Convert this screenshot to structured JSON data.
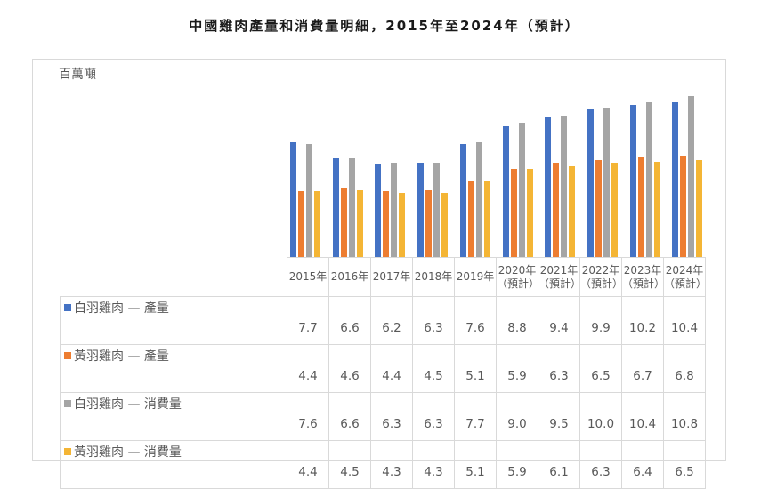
{
  "title": "中國雞肉產量和消費量明細，2015年至2024年（預計）",
  "unit_label": "百萬噸",
  "chart_data": {
    "type": "bar",
    "title": "中國雞肉產量和消費量明細，2015年至2024年（預計）",
    "ylabel": "百萬噸",
    "xlabel": "",
    "categories": [
      "2015年",
      "2016年",
      "2017年",
      "2018年",
      "2019年",
      "2020年（預計）",
      "2021年（預計）",
      "2022年（預計）",
      "2023年（預計）",
      "2024年（預計）"
    ],
    "category_lines": [
      [
        "2015年",
        ""
      ],
      [
        "2016年",
        ""
      ],
      [
        "2017年",
        ""
      ],
      [
        "2018年",
        ""
      ],
      [
        "2019年",
        ""
      ],
      [
        "2020年",
        "（預計）"
      ],
      [
        "2021年",
        "（預計）"
      ],
      [
        "2022年",
        "（預計）"
      ],
      [
        "2023年",
        "（預計）"
      ],
      [
        "2024年",
        "（預計）"
      ]
    ],
    "series": [
      {
        "name": "白羽雞肉 — 產量",
        "color": "#4472c4",
        "values": [
          7.7,
          6.6,
          6.2,
          6.3,
          7.6,
          8.8,
          9.4,
          9.9,
          10.2,
          10.4
        ],
        "labels": [
          "7.7",
          "6.6",
          "6.2",
          "6.3",
          "7.6",
          "8.8",
          "9.4",
          "9.9",
          "10.2",
          "10.4"
        ]
      },
      {
        "name": "黃羽雞肉 — 產量",
        "color": "#ed7d31",
        "values": [
          4.4,
          4.6,
          4.4,
          4.5,
          5.1,
          5.9,
          6.3,
          6.5,
          6.7,
          6.8
        ],
        "labels": [
          "4.4",
          "4.6",
          "4.4",
          "4.5",
          "5.1",
          "5.9",
          "6.3",
          "6.5",
          "6.7",
          "6.8"
        ]
      },
      {
        "name": "白羽雞肉 — 消費量",
        "color": "#a5a5a5",
        "values": [
          7.6,
          6.6,
          6.3,
          6.3,
          7.7,
          9.0,
          9.5,
          10.0,
          10.4,
          10.8
        ],
        "labels": [
          "7.6",
          "6.6",
          "6.3",
          "6.3",
          "7.7",
          "9.0",
          "9.5",
          "10.0",
          "10.4",
          "10.8"
        ]
      },
      {
        "name": "黃羽雞肉 — 消費量",
        "color": "#f4b535",
        "values": [
          4.4,
          4.5,
          4.3,
          4.3,
          5.1,
          5.9,
          6.1,
          6.3,
          6.4,
          6.5
        ],
        "labels": [
          "4.4",
          "4.5",
          "4.3",
          "4.3",
          "5.1",
          "5.9",
          "6.1",
          "6.3",
          "6.4",
          "6.5"
        ]
      }
    ],
    "data_table": true,
    "grid": false,
    "legend_position": "data-table"
  }
}
